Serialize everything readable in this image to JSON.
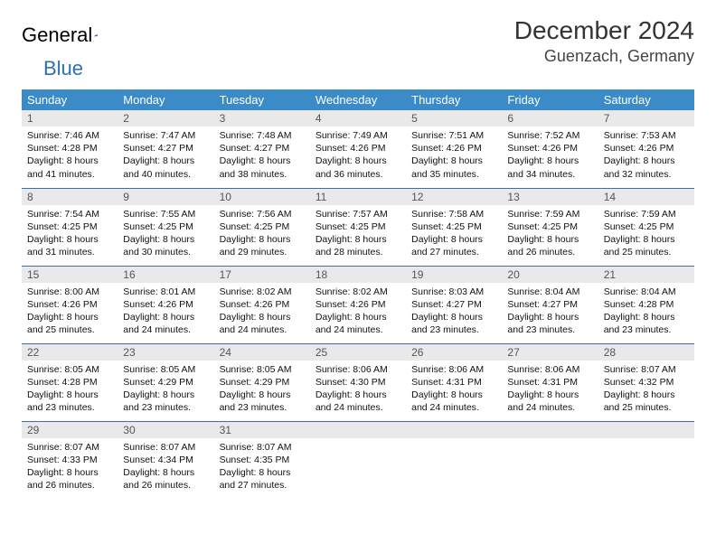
{
  "brand": {
    "word1": "General",
    "word2": "Blue"
  },
  "title": "December 2024",
  "location": "Guenzach, Germany",
  "colors": {
    "header_bg": "#3b8bc9",
    "header_text": "#ffffff",
    "daynum_bg": "#e9e9e9",
    "row_border": "#3b6fa0",
    "logo_gray": "#5a6570",
    "logo_blue": "#2f6fb5"
  },
  "weekdays": [
    "Sunday",
    "Monday",
    "Tuesday",
    "Wednesday",
    "Thursday",
    "Friday",
    "Saturday"
  ],
  "weeks": [
    [
      {
        "n": "1",
        "sr": "Sunrise: 7:46 AM",
        "ss": "Sunset: 4:28 PM",
        "d1": "Daylight: 8 hours",
        "d2": "and 41 minutes."
      },
      {
        "n": "2",
        "sr": "Sunrise: 7:47 AM",
        "ss": "Sunset: 4:27 PM",
        "d1": "Daylight: 8 hours",
        "d2": "and 40 minutes."
      },
      {
        "n": "3",
        "sr": "Sunrise: 7:48 AM",
        "ss": "Sunset: 4:27 PM",
        "d1": "Daylight: 8 hours",
        "d2": "and 38 minutes."
      },
      {
        "n": "4",
        "sr": "Sunrise: 7:49 AM",
        "ss": "Sunset: 4:26 PM",
        "d1": "Daylight: 8 hours",
        "d2": "and 36 minutes."
      },
      {
        "n": "5",
        "sr": "Sunrise: 7:51 AM",
        "ss": "Sunset: 4:26 PM",
        "d1": "Daylight: 8 hours",
        "d2": "and 35 minutes."
      },
      {
        "n": "6",
        "sr": "Sunrise: 7:52 AM",
        "ss": "Sunset: 4:26 PM",
        "d1": "Daylight: 8 hours",
        "d2": "and 34 minutes."
      },
      {
        "n": "7",
        "sr": "Sunrise: 7:53 AM",
        "ss": "Sunset: 4:26 PM",
        "d1": "Daylight: 8 hours",
        "d2": "and 32 minutes."
      }
    ],
    [
      {
        "n": "8",
        "sr": "Sunrise: 7:54 AM",
        "ss": "Sunset: 4:25 PM",
        "d1": "Daylight: 8 hours",
        "d2": "and 31 minutes."
      },
      {
        "n": "9",
        "sr": "Sunrise: 7:55 AM",
        "ss": "Sunset: 4:25 PM",
        "d1": "Daylight: 8 hours",
        "d2": "and 30 minutes."
      },
      {
        "n": "10",
        "sr": "Sunrise: 7:56 AM",
        "ss": "Sunset: 4:25 PM",
        "d1": "Daylight: 8 hours",
        "d2": "and 29 minutes."
      },
      {
        "n": "11",
        "sr": "Sunrise: 7:57 AM",
        "ss": "Sunset: 4:25 PM",
        "d1": "Daylight: 8 hours",
        "d2": "and 28 minutes."
      },
      {
        "n": "12",
        "sr": "Sunrise: 7:58 AM",
        "ss": "Sunset: 4:25 PM",
        "d1": "Daylight: 8 hours",
        "d2": "and 27 minutes."
      },
      {
        "n": "13",
        "sr": "Sunrise: 7:59 AM",
        "ss": "Sunset: 4:25 PM",
        "d1": "Daylight: 8 hours",
        "d2": "and 26 minutes."
      },
      {
        "n": "14",
        "sr": "Sunrise: 7:59 AM",
        "ss": "Sunset: 4:25 PM",
        "d1": "Daylight: 8 hours",
        "d2": "and 25 minutes."
      }
    ],
    [
      {
        "n": "15",
        "sr": "Sunrise: 8:00 AM",
        "ss": "Sunset: 4:26 PM",
        "d1": "Daylight: 8 hours",
        "d2": "and 25 minutes."
      },
      {
        "n": "16",
        "sr": "Sunrise: 8:01 AM",
        "ss": "Sunset: 4:26 PM",
        "d1": "Daylight: 8 hours",
        "d2": "and 24 minutes."
      },
      {
        "n": "17",
        "sr": "Sunrise: 8:02 AM",
        "ss": "Sunset: 4:26 PM",
        "d1": "Daylight: 8 hours",
        "d2": "and 24 minutes."
      },
      {
        "n": "18",
        "sr": "Sunrise: 8:02 AM",
        "ss": "Sunset: 4:26 PM",
        "d1": "Daylight: 8 hours",
        "d2": "and 24 minutes."
      },
      {
        "n": "19",
        "sr": "Sunrise: 8:03 AM",
        "ss": "Sunset: 4:27 PM",
        "d1": "Daylight: 8 hours",
        "d2": "and 23 minutes."
      },
      {
        "n": "20",
        "sr": "Sunrise: 8:04 AM",
        "ss": "Sunset: 4:27 PM",
        "d1": "Daylight: 8 hours",
        "d2": "and 23 minutes."
      },
      {
        "n": "21",
        "sr": "Sunrise: 8:04 AM",
        "ss": "Sunset: 4:28 PM",
        "d1": "Daylight: 8 hours",
        "d2": "and 23 minutes."
      }
    ],
    [
      {
        "n": "22",
        "sr": "Sunrise: 8:05 AM",
        "ss": "Sunset: 4:28 PM",
        "d1": "Daylight: 8 hours",
        "d2": "and 23 minutes."
      },
      {
        "n": "23",
        "sr": "Sunrise: 8:05 AM",
        "ss": "Sunset: 4:29 PM",
        "d1": "Daylight: 8 hours",
        "d2": "and 23 minutes."
      },
      {
        "n": "24",
        "sr": "Sunrise: 8:05 AM",
        "ss": "Sunset: 4:29 PM",
        "d1": "Daylight: 8 hours",
        "d2": "and 23 minutes."
      },
      {
        "n": "25",
        "sr": "Sunrise: 8:06 AM",
        "ss": "Sunset: 4:30 PM",
        "d1": "Daylight: 8 hours",
        "d2": "and 24 minutes."
      },
      {
        "n": "26",
        "sr": "Sunrise: 8:06 AM",
        "ss": "Sunset: 4:31 PM",
        "d1": "Daylight: 8 hours",
        "d2": "and 24 minutes."
      },
      {
        "n": "27",
        "sr": "Sunrise: 8:06 AM",
        "ss": "Sunset: 4:31 PM",
        "d1": "Daylight: 8 hours",
        "d2": "and 24 minutes."
      },
      {
        "n": "28",
        "sr": "Sunrise: 8:07 AM",
        "ss": "Sunset: 4:32 PM",
        "d1": "Daylight: 8 hours",
        "d2": "and 25 minutes."
      }
    ],
    [
      {
        "n": "29",
        "sr": "Sunrise: 8:07 AM",
        "ss": "Sunset: 4:33 PM",
        "d1": "Daylight: 8 hours",
        "d2": "and 26 minutes."
      },
      {
        "n": "30",
        "sr": "Sunrise: 8:07 AM",
        "ss": "Sunset: 4:34 PM",
        "d1": "Daylight: 8 hours",
        "d2": "and 26 minutes."
      },
      {
        "n": "31",
        "sr": "Sunrise: 8:07 AM",
        "ss": "Sunset: 4:35 PM",
        "d1": "Daylight: 8 hours",
        "d2": "and 27 minutes."
      },
      {
        "empty": true
      },
      {
        "empty": true
      },
      {
        "empty": true
      },
      {
        "empty": true
      }
    ]
  ]
}
